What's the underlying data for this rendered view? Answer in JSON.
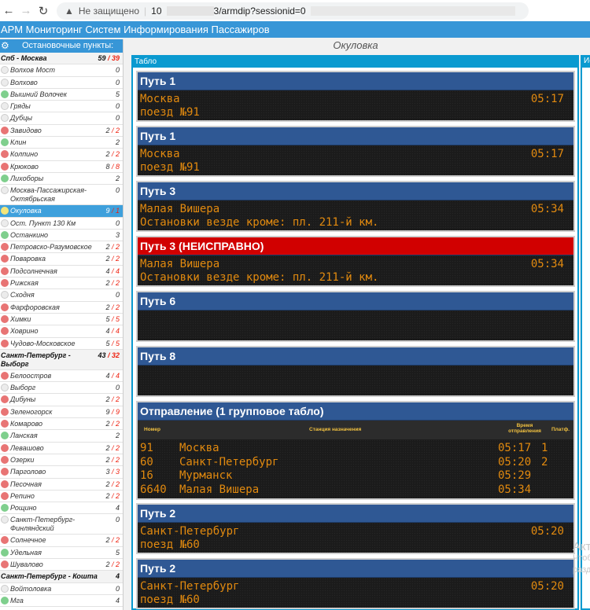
{
  "browser": {
    "security_label": "Не защищено",
    "url_prefix": "10",
    "url_suffix": "3/armdip?sessionid=0"
  },
  "app": {
    "title": "АРМ Мониторинг Систем Информирования Пассажиров"
  },
  "sidebar": {
    "title": "Остановочные пункты:",
    "rows": [
      {
        "type": "group",
        "name": "Спб - Москва",
        "count": "59",
        "bad": "39"
      },
      {
        "name": "Волхов Мост",
        "status": "gray",
        "count": "0"
      },
      {
        "name": "Волхово",
        "status": "gray",
        "count": "0"
      },
      {
        "name": "Вышний Волочек",
        "status": "green",
        "count": "5"
      },
      {
        "name": "Гряды",
        "status": "gray",
        "count": "0"
      },
      {
        "name": "Дубцы",
        "status": "gray",
        "count": "0"
      },
      {
        "name": "Завидово",
        "status": "red",
        "count": "2",
        "bad": "2"
      },
      {
        "name": "Клин",
        "status": "green",
        "count": "2"
      },
      {
        "name": "Колпино",
        "status": "red",
        "count": "2",
        "bad": "2"
      },
      {
        "name": "Крюково",
        "status": "red",
        "count": "8",
        "bad": "8"
      },
      {
        "name": "Лихоборы",
        "status": "green",
        "count": "2"
      },
      {
        "name": "Москва-Пассажирская-Октябрьская",
        "status": "gray",
        "count": "0"
      },
      {
        "name": "Окуловка",
        "status": "yellow",
        "count": "9",
        "bad": "1",
        "selected": true
      },
      {
        "name": "Ост. Пункт 130 Км",
        "status": "gray",
        "count": "0"
      },
      {
        "name": "Останкино",
        "status": "green",
        "count": "3"
      },
      {
        "name": "Петровско-Разумовское",
        "status": "red",
        "count": "2",
        "bad": "2"
      },
      {
        "name": "Поваровка",
        "status": "red",
        "count": "2",
        "bad": "2"
      },
      {
        "name": "Подсолнечная",
        "status": "red",
        "count": "4",
        "bad": "4"
      },
      {
        "name": "Рижская",
        "status": "red",
        "count": "2",
        "bad": "2"
      },
      {
        "name": "Сходня",
        "status": "gray",
        "count": "0"
      },
      {
        "name": "Фарфоровская",
        "status": "red",
        "count": "2",
        "bad": "2"
      },
      {
        "name": "Химки",
        "status": "red",
        "count": "5",
        "bad": "5"
      },
      {
        "name": "Ховрино",
        "status": "red",
        "count": "4",
        "bad": "4"
      },
      {
        "name": "Чудово-Московское",
        "status": "red",
        "count": "5",
        "bad": "5"
      },
      {
        "type": "group",
        "name": "Санкт-Петербург - Выборг",
        "count": "43",
        "bad": "32"
      },
      {
        "name": "Белоостров",
        "status": "red",
        "count": "4",
        "bad": "4"
      },
      {
        "name": "Выборг",
        "status": "gray",
        "count": "0"
      },
      {
        "name": "Дибуны",
        "status": "red",
        "count": "2",
        "bad": "2"
      },
      {
        "name": "Зеленогорск",
        "status": "red",
        "count": "9",
        "bad": "9"
      },
      {
        "name": "Комарово",
        "status": "red",
        "count": "2",
        "bad": "2"
      },
      {
        "name": "Ланская",
        "status": "green",
        "count": "2"
      },
      {
        "name": "Левашово",
        "status": "red",
        "count": "2",
        "bad": "2"
      },
      {
        "name": "Озерки",
        "status": "red",
        "count": "2",
        "bad": "2"
      },
      {
        "name": "Парголово",
        "status": "red",
        "count": "3",
        "bad": "3"
      },
      {
        "name": "Песочная",
        "status": "red",
        "count": "2",
        "bad": "2"
      },
      {
        "name": "Репино",
        "status": "red",
        "count": "2",
        "bad": "2"
      },
      {
        "name": "Рощино",
        "status": "green",
        "count": "4"
      },
      {
        "name": "Санкт-Петербург-Финляндский",
        "status": "gray",
        "count": "0"
      },
      {
        "name": "Солнечное",
        "status": "red",
        "count": "2",
        "bad": "2"
      },
      {
        "name": "Удельная",
        "status": "green",
        "count": "5"
      },
      {
        "name": "Шувалово",
        "status": "red",
        "count": "2",
        "bad": "2"
      },
      {
        "type": "group",
        "name": "Санкт-Петербург - Кошта",
        "count": "4"
      },
      {
        "name": "Войтоловка",
        "status": "gray",
        "count": "0"
      },
      {
        "name": "Мга",
        "status": "green",
        "count": "4"
      }
    ]
  },
  "main": {
    "station_title": "Окуловка",
    "panel_title": "Табло",
    "right_panel_title": "Ис",
    "boards": [
      {
        "title": "Путь 1",
        "line1": "Москва",
        "line2": "поезд №91",
        "time": "05:17"
      },
      {
        "title": "Путь 1",
        "line1": "Москва",
        "line2": "поезд №91",
        "time": "05:17"
      },
      {
        "title": "Путь 3",
        "line1": "Малая Вишера",
        "line2": "Остановки везде кроме: пл. 211-й км.",
        "time": "05:34"
      },
      {
        "title": "Путь 3 (НЕИСПРАВНО)",
        "fault": true,
        "line1": "Малая Вишера",
        "line2": "Остановки везде кроме: пл. 211-й км.",
        "time": "05:34"
      },
      {
        "title": "Путь 6",
        "line1": "",
        "line2": "",
        "time": ""
      },
      {
        "title": "Путь 8",
        "line1": "",
        "line2": "",
        "time": ""
      }
    ],
    "departure": {
      "title": "Отправление (1 групповое табло)",
      "columns": {
        "number": "Номер",
        "destination": "Станция назначения",
        "time": "Время отправления",
        "platform": "Платф."
      },
      "rows": [
        {
          "number": "91",
          "destination": "Москва",
          "time": "05:17",
          "platform": "1"
        },
        {
          "number": "60",
          "destination": "Санкт-Петербург",
          "time": "05:20",
          "platform": "2"
        },
        {
          "number": "16",
          "destination": "Мурманск",
          "time": "05:29",
          "platform": ""
        },
        {
          "number": "6640",
          "destination": "Малая Вишера",
          "time": "05:34",
          "platform": ""
        }
      ]
    },
    "boards_bottom": [
      {
        "title": "Путь 2",
        "line1": "Санкт-Петербург",
        "line2": "поезд №60",
        "time": "05:20"
      },
      {
        "title": "Путь 2",
        "line1": "Санкт-Петербург",
        "line2": "поезд №60",
        "time": "05:20"
      }
    ]
  },
  "watermark": {
    "line1": "Акт",
    "line2": "Чтоб",
    "line3": "разд"
  },
  "colors": {
    "app_bar": "#3796d7",
    "panel": "#0a9ad0",
    "board_header": "#2f5894",
    "fault": "#d10000",
    "led": "#e28a0f"
  }
}
